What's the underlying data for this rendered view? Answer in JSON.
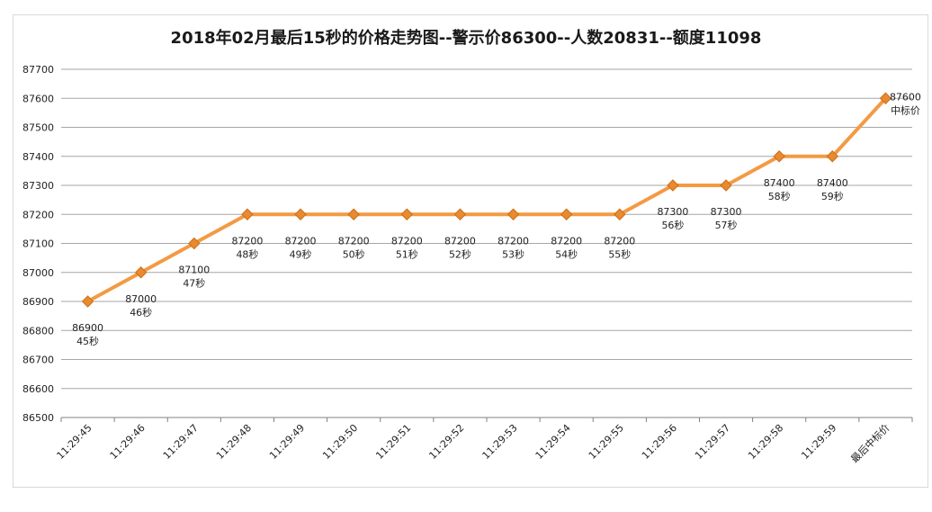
{
  "chart_data": {
    "type": "line",
    "title": "2018年02月最后15秒的价格走势图--警示价86300--人数20831--额度11098",
    "xlabel": "",
    "ylabel": "",
    "ylim": [
      86500,
      87700
    ],
    "yticks": [
      86500,
      86600,
      86700,
      86800,
      86900,
      87000,
      87100,
      87200,
      87300,
      87400,
      87500,
      87600,
      87700
    ],
    "grid": true,
    "categories": [
      "11:29:45",
      "11:29:46",
      "11:29:47",
      "11:29:48",
      "11:29:49",
      "11:29:50",
      "11:29:51",
      "11:29:52",
      "11:29:53",
      "11:29:54",
      "11:29:55",
      "11:29:56",
      "11:29:57",
      "11:29:58",
      "11:29:59",
      "最后中标价"
    ],
    "values": [
      86900,
      87000,
      87100,
      87200,
      87200,
      87200,
      87200,
      87200,
      87200,
      87200,
      87200,
      87300,
      87300,
      87400,
      87400,
      87600
    ],
    "point_labels": [
      "45秒",
      "46秒",
      "47秒",
      "48秒",
      "49秒",
      "50秒",
      "51秒",
      "52秒",
      "53秒",
      "54秒",
      "55秒",
      "56秒",
      "57秒",
      "58秒",
      "59秒",
      "中标价"
    ],
    "color": "#f39a44",
    "marker_color": "#e98a2e"
  }
}
